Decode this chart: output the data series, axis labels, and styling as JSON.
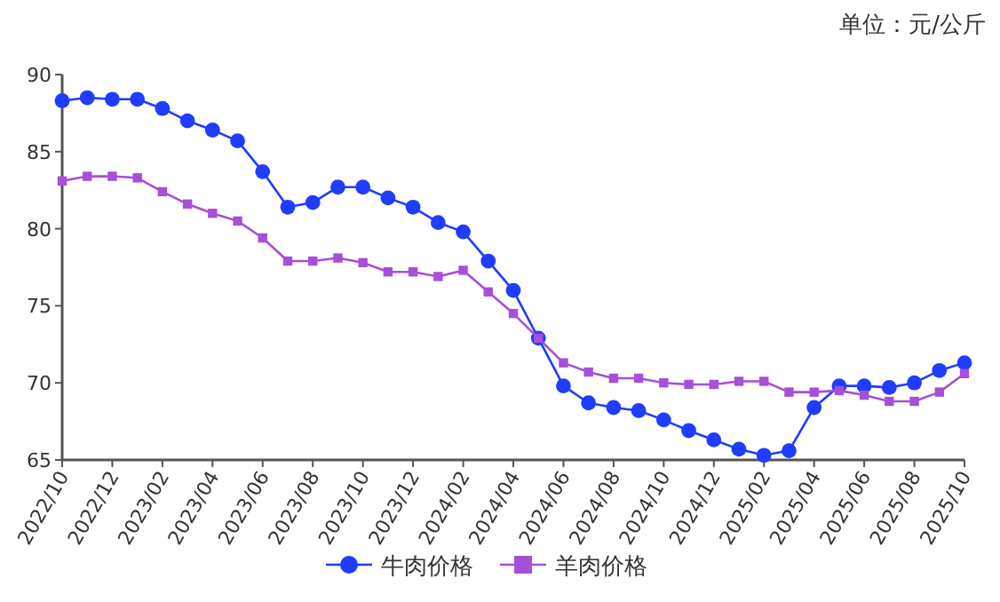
{
  "chart_data": {
    "type": "line",
    "annotations": [
      "单位：元/公斤"
    ],
    "categories": [
      "2022/10",
      null,
      "2022/12",
      null,
      "2023/02",
      null,
      "2023/04",
      null,
      "2023/06",
      null,
      "2023/08",
      null,
      "2023/10",
      null,
      "2023/12",
      null,
      "2024/02",
      null,
      "2024/04",
      null,
      "2024/06",
      null,
      "2024/08",
      null,
      "2024/10",
      null,
      "2024/12",
      null,
      "2025/02",
      null,
      "2025/04",
      null,
      "2025/06",
      null,
      "2025/08",
      null,
      "2025/10"
    ],
    "series": [
      {
        "name": "牛肉价格",
        "color": "#1f3cff",
        "marker": "circle",
        "values": [
          88.3,
          88.5,
          88.4,
          88.4,
          87.8,
          87.0,
          86.4,
          85.7,
          83.7,
          81.4,
          81.7,
          82.7,
          82.7,
          82.0,
          81.4,
          80.4,
          79.8,
          77.9,
          76.0,
          72.9,
          69.8,
          68.7,
          68.4,
          68.2,
          67.6,
          66.9,
          66.3,
          65.7,
          65.3,
          65.6,
          68.4,
          69.8,
          69.8,
          69.7,
          70.0,
          70.8,
          71.3
        ]
      },
      {
        "name": "羊肉价格",
        "color": "#a64fd8",
        "marker": "square",
        "values": [
          83.1,
          83.4,
          83.4,
          83.3,
          82.4,
          81.6,
          81.0,
          80.5,
          79.4,
          77.9,
          77.9,
          78.1,
          77.8,
          77.2,
          77.2,
          76.9,
          77.3,
          75.9,
          74.5,
          72.9,
          71.3,
          70.7,
          70.3,
          70.3,
          70.0,
          69.9,
          69.9,
          70.1,
          70.1,
          69.4,
          69.4,
          69.5,
          69.2,
          68.8,
          68.8,
          69.4,
          70.6
        ]
      }
    ],
    "ylim": [
      65,
      90
    ],
    "yticks": [
      65,
      70,
      75,
      80,
      85,
      90
    ],
    "legend": "bottom"
  }
}
